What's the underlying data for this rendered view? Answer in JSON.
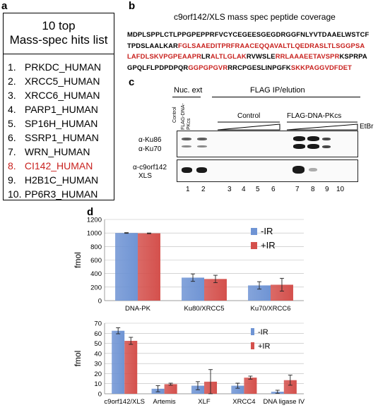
{
  "panel_a": {
    "label": "a",
    "title_line1": "10 top",
    "title_line2": "Mass-spec hits list",
    "items": [
      {
        "num": "1.",
        "name": "PRKDC_HUMAN",
        "highlight": false
      },
      {
        "num": "2.",
        "name": "XRCC5_HUMAN",
        "highlight": false
      },
      {
        "num": "3.",
        "name": "XRCC6_HUMAN",
        "highlight": false
      },
      {
        "num": "4.",
        "name": "PARP1_HUMAN",
        "highlight": false
      },
      {
        "num": "5.",
        "name": "SP16H_HUMAN",
        "highlight": false
      },
      {
        "num": "6.",
        "name": "SSRP1_HUMAN",
        "highlight": false
      },
      {
        "num": "7.",
        "name": "WRN_HUMAN",
        "highlight": false
      },
      {
        "num": "8.",
        "name": "CI142_HUMAN",
        "highlight": true
      },
      {
        "num": "9.",
        "name": "H2B1C_HUMAN",
        "highlight": false
      },
      {
        "num": "10.",
        "name": "PP6R3_HUMAN",
        "highlight": false
      }
    ],
    "highlight_color": "#c8211e"
  },
  "panel_b": {
    "label": "b",
    "title": "c9orf142/XLS mass spec peptide coverage",
    "lines": [
      [
        {
          "t": "MDPLSPPLCTLPPGPEPPRFVCYCEGEESGEGDRGGFNLYVTDAAELWSTCF",
          "red": false
        }
      ],
      [
        {
          "t": "TPDSLAALKAR",
          "red": false
        },
        {
          "t": "FGLSAAEDITPRFRAACEQQAVALTLQEDRASLTLSGGPSA",
          "red": true
        }
      ],
      [
        {
          "t": "LAFDLSKVPGPEAAPR",
          "red": true
        },
        {
          "t": "LR",
          "red": false
        },
        {
          "t": "ALTLGLAK",
          "red": true
        },
        {
          "t": "RVWSLE",
          "red": false
        },
        {
          "t": "RRLAAAEETAVSPR",
          "red": true
        },
        {
          "t": "KSPRPA",
          "red": false
        }
      ],
      [
        {
          "t": "GPQLFLPDPDPQR",
          "red": false
        },
        {
          "t": "GGPGPGVR",
          "red": true
        },
        {
          "t": "RRCPGESLINPGFK",
          "red": false
        },
        {
          "t": "SKKPAGGVDFDET",
          "red": true
        }
      ]
    ]
  },
  "panel_c": {
    "label": "c",
    "nuc_ext": "Nuc. ext",
    "flag_ip": "FLAG IP/elution",
    "lane_control": "Control",
    "lane_flag": "FLAG-DNA-PKcs",
    "group_control": "Control",
    "group_flag": "FLAG-DNA-PKcs",
    "etbr": "EtBr",
    "ab_ku86": "α-Ku86",
    "ab_ku70": "α-Ku70",
    "ab_c9_line1": "α-c9orf142",
    "ab_c9_line2": "XLS",
    "lanes": [
      "1",
      "2",
      "3",
      "4",
      "5",
      "6",
      "7",
      "8",
      "9",
      "10"
    ]
  },
  "panel_d": {
    "label": "d"
  },
  "chart_data": [
    {
      "type": "bar",
      "categories": [
        "DNA-PK",
        "Ku80/XRCC5",
        "Ku70/XRCC6"
      ],
      "series": [
        {
          "name": "-IR",
          "values": [
            1000,
            340,
            225
          ],
          "errors": [
            5,
            55,
            55
          ],
          "color": "#6f94d4"
        },
        {
          "name": "+IR",
          "values": [
            995,
            320,
            235
          ],
          "errors": [
            5,
            55,
            95
          ],
          "color": "#d4504c"
        }
      ],
      "ylabel": "fmol",
      "ylim": [
        0,
        1200
      ],
      "yticks": [
        0,
        200,
        400,
        600,
        800,
        1000,
        1200
      ],
      "grid": true,
      "legend": "top-right"
    },
    {
      "type": "bar",
      "categories": [
        "c9orf142/XLS",
        "Artemis",
        "XLF",
        "XRCC4",
        "DNA ligase IV"
      ],
      "series": [
        {
          "name": "-IR",
          "values": [
            62.5,
            5,
            8,
            8,
            2
          ],
          "errors": [
            3,
            3,
            4,
            2.5,
            1.5
          ],
          "color": "#6f94d4"
        },
        {
          "name": "+IR",
          "values": [
            52.5,
            9.5,
            12,
            16,
            13.5
          ],
          "errors": [
            3.5,
            1,
            12,
            1.5,
            5
          ],
          "color": "#d4504c"
        }
      ],
      "ylabel": "fmol",
      "ylim": [
        0,
        70
      ],
      "yticks": [
        0,
        10,
        20,
        30,
        40,
        50,
        60,
        70
      ],
      "grid": true,
      "legend": "top-right"
    }
  ]
}
